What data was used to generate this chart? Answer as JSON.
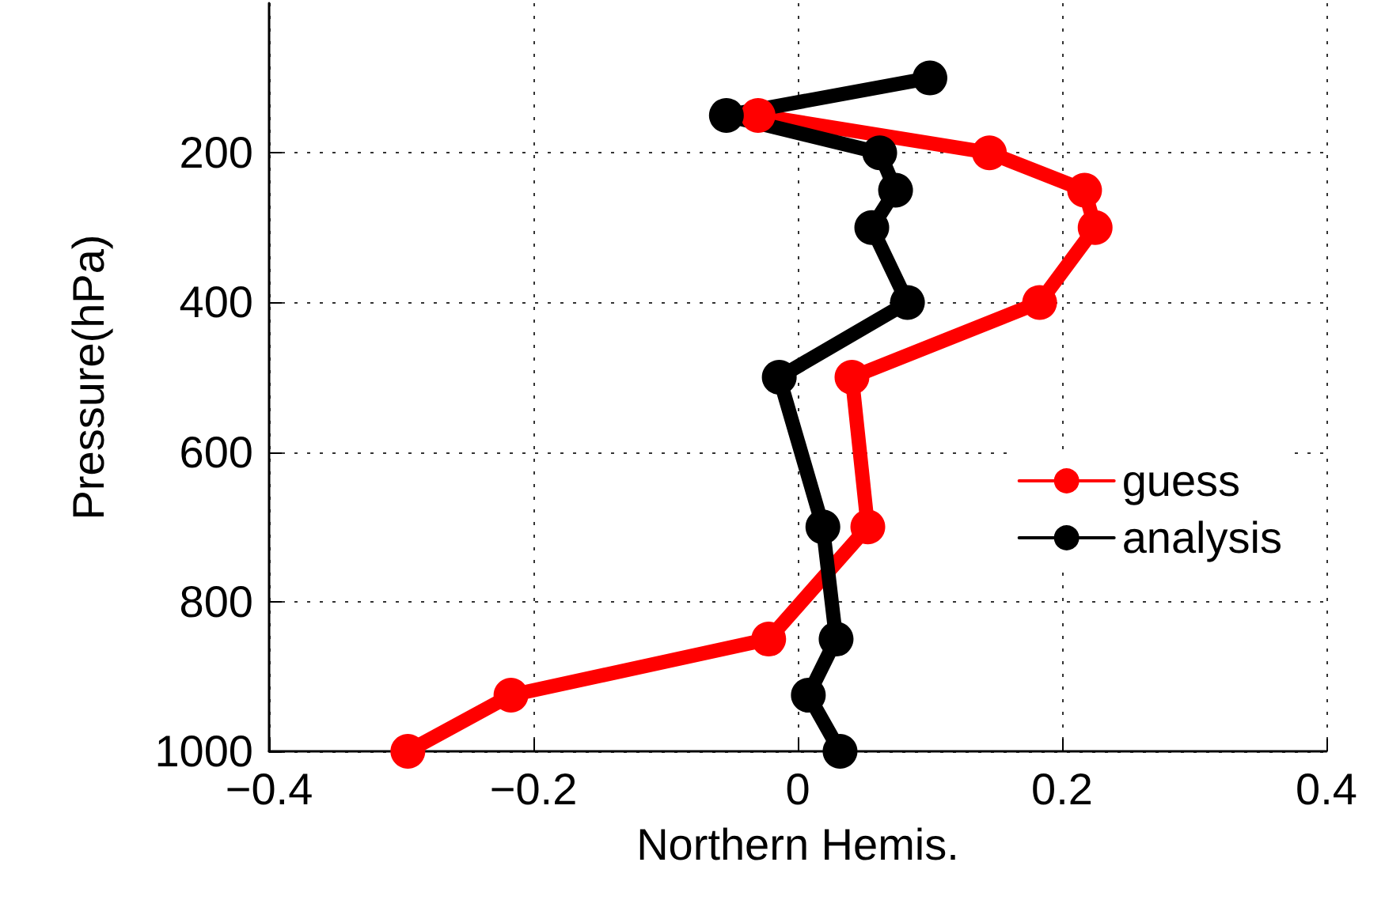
{
  "chart_data": {
    "type": "line",
    "orientation": "horizontal",
    "xlabel": "Northern Hemis.",
    "ylabel": "Pressure(hPa)",
    "xlim": [
      -0.4,
      0.4
    ],
    "xticks": [
      {
        "value": -0.4,
        "label": "−0.4"
      },
      {
        "value": -0.2,
        "label": "−0.2"
      },
      0,
      0.2,
      0.4
    ],
    "ylim": [
      1000,
      0
    ],
    "yticks": [
      200,
      400,
      600,
      800,
      1000
    ],
    "grid": true,
    "legend": "right",
    "marker": "circle",
    "line_style": "solid",
    "series": [
      {
        "name": "guess",
        "color": "#ff0000",
        "x": [
          150,
          200,
          250,
          300,
          400,
          500,
          700,
          850,
          925,
          1000
        ],
        "values": [
          -0.03,
          0.145,
          0.217,
          0.225,
          0.183,
          0.041,
          0.053,
          -0.022,
          -0.217,
          -0.295
        ]
      },
      {
        "name": "analysis",
        "color": "#000000",
        "x": [
          100,
          150,
          200,
          250,
          300,
          400,
          500,
          700,
          850,
          925,
          1000
        ],
        "values": [
          0.1,
          -0.054,
          0.062,
          0.074,
          0.056,
          0.083,
          -0.014,
          0.019,
          0.029,
          0.008,
          0.032
        ]
      }
    ]
  }
}
